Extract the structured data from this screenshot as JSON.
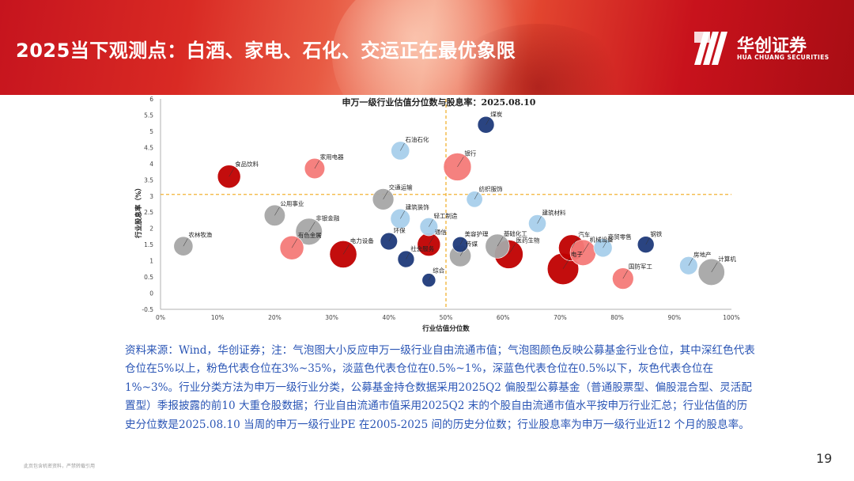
{
  "header": {
    "title": "2025当下观测点：白酒、家电、石化、交运正在最优象限"
  },
  "logo": {
    "cn": "华创证券",
    "en": "HUA CHUANG SECURITIES"
  },
  "colors": {
    "deep_red": "#c00000",
    "pink": "#f47a78",
    "light_blue": "#a8cfeb",
    "dark_blue": "#1f3a7a",
    "gray": "#a6a6a6",
    "guide": "#f2b233"
  },
  "chart_data": {
    "type": "scatter",
    "title": "申万一级行业估值分位数与股息率：2025.08.10",
    "xlabel": "行业估值分位数",
    "ylabel": "行业股息率（%）",
    "xlim": [
      0,
      100
    ],
    "ylim": [
      -0.5,
      6
    ],
    "x_ticks": [
      "0%",
      "10%",
      "20%",
      "30%",
      "40%",
      "50%",
      "60%",
      "70%",
      "80%",
      "90%",
      "100%"
    ],
    "y_ticks": [
      "-0.5",
      "0",
      "0.5",
      "1",
      "1.5",
      "2",
      "2.5",
      "3",
      "3.5",
      "4",
      "4.5",
      "5",
      "5.5",
      "6"
    ],
    "guides": {
      "x": 50,
      "y": 3.05
    },
    "grid": false,
    "points": [
      {
        "name": "煤炭",
        "x": 57,
        "y": 5.2,
        "size": 0.8,
        "color": "dark_blue"
      },
      {
        "name": "石油石化",
        "x": 42,
        "y": 4.4,
        "size": 1.2,
        "color": "light_blue"
      },
      {
        "name": "银行",
        "x": 52,
        "y": 3.9,
        "size": 4.6,
        "color": "pink"
      },
      {
        "name": "食品饮料",
        "x": 12,
        "y": 3.6,
        "size": 2.6,
        "color": "deep_red"
      },
      {
        "name": "家用电器",
        "x": 27,
        "y": 3.85,
        "size": 1.7,
        "color": "pink"
      },
      {
        "name": "交通运输",
        "x": 39,
        "y": 2.9,
        "size": 2.0,
        "color": "gray"
      },
      {
        "name": "纺织服饰",
        "x": 55,
        "y": 2.9,
        "size": 0.7,
        "color": "light_blue"
      },
      {
        "name": "公用事业",
        "x": 20,
        "y": 2.4,
        "size": 1.9,
        "color": "gray"
      },
      {
        "name": "建筑装饰",
        "x": 42,
        "y": 2.3,
        "size": 1.5,
        "color": "light_blue"
      },
      {
        "name": "轻工制造",
        "x": 47,
        "y": 2.05,
        "size": 1.1,
        "color": "light_blue"
      },
      {
        "name": "建筑材料",
        "x": 66,
        "y": 2.15,
        "size": 1.0,
        "color": "light_blue"
      },
      {
        "name": "农林牧渔",
        "x": 4,
        "y": 1.45,
        "size": 1.4,
        "color": "gray"
      },
      {
        "name": "非银金融",
        "x": 26,
        "y": 1.9,
        "size": 4.1,
        "color": "gray"
      },
      {
        "name": "电力设备",
        "x": 32,
        "y": 1.2,
        "size": 4.3,
        "color": "deep_red"
      },
      {
        "name": "环保",
        "x": 40,
        "y": 1.6,
        "size": 0.9,
        "color": "dark_blue"
      },
      {
        "name": "有色金属",
        "x": 23,
        "y": 1.4,
        "size": 2.9,
        "color": "pink"
      },
      {
        "name": "社会服务",
        "x": 43,
        "y": 1.05,
        "size": 0.8,
        "color": "dark_blue"
      },
      {
        "name": "通信",
        "x": 47,
        "y": 1.5,
        "size": 2.6,
        "color": "deep_red"
      },
      {
        "name": "综合",
        "x": 47,
        "y": 0.4,
        "size": 0.3,
        "color": "dark_blue"
      },
      {
        "name": "美容护理",
        "x": 52.5,
        "y": 1.5,
        "size": 0.6,
        "color": "dark_blue"
      },
      {
        "name": "传媒",
        "x": 52.5,
        "y": 1.15,
        "size": 2.1,
        "color": "gray"
      },
      {
        "name": "基础化工",
        "x": 59,
        "y": 1.45,
        "size": 3.0,
        "color": "gray"
      },
      {
        "name": "医药生物",
        "x": 61,
        "y": 1.2,
        "size": 5.0,
        "color": "deep_red"
      },
      {
        "name": "电子",
        "x": 70.5,
        "y": 0.75,
        "size": 6.5,
        "color": "deep_red"
      },
      {
        "name": "汽车",
        "x": 72,
        "y": 1.4,
        "size": 3.8,
        "color": "deep_red"
      },
      {
        "name": "机械设备",
        "x": 74,
        "y": 1.25,
        "size": 3.7,
        "color": "pink"
      },
      {
        "name": "商贸零售",
        "x": 77.5,
        "y": 1.4,
        "size": 1.2,
        "color": "light_blue"
      },
      {
        "name": "钢铁",
        "x": 85,
        "y": 1.5,
        "size": 0.8,
        "color": "dark_blue"
      },
      {
        "name": "房地产",
        "x": 92.5,
        "y": 0.85,
        "size": 1.1,
        "color": "light_blue"
      },
      {
        "name": "国防军工",
        "x": 81,
        "y": 0.45,
        "size": 2.0,
        "color": "pink"
      },
      {
        "name": "计算机",
        "x": 96.5,
        "y": 0.65,
        "size": 4.0,
        "color": "gray"
      }
    ]
  },
  "note": "资料来源：Wind，华创证券；注：气泡图大小反应申万一级行业自由流通市值；气泡图颜色反映公募基金行业仓位，其中深红色代表仓位在5%以上，粉色代表仓位在3%~35%，淡蓝色代表仓位在0.5%~1%，深蓝色代表仓位在0.5%以下，灰色代表仓位在1%~3%。行业分类方法为申万一级行业分类，公募基金持仓数据采用2025Q2 偏股型公募基金（普通股票型、偏股混合型、灵活配置型）季报披露的前10 大重仓股数据；行业自由流通市值采用2025Q2 末的个股自由流通市值水平按申万行业汇总；行业估值的历史分位数是2025.08.10 当周的申万一级行业PE 在2005-2025 间的历史分位数；行业股息率为申万一级行业近12 个月的股息率。",
  "footer": {
    "disclaimer": "此页包含机密资料，严禁转载引用",
    "page": "19"
  }
}
